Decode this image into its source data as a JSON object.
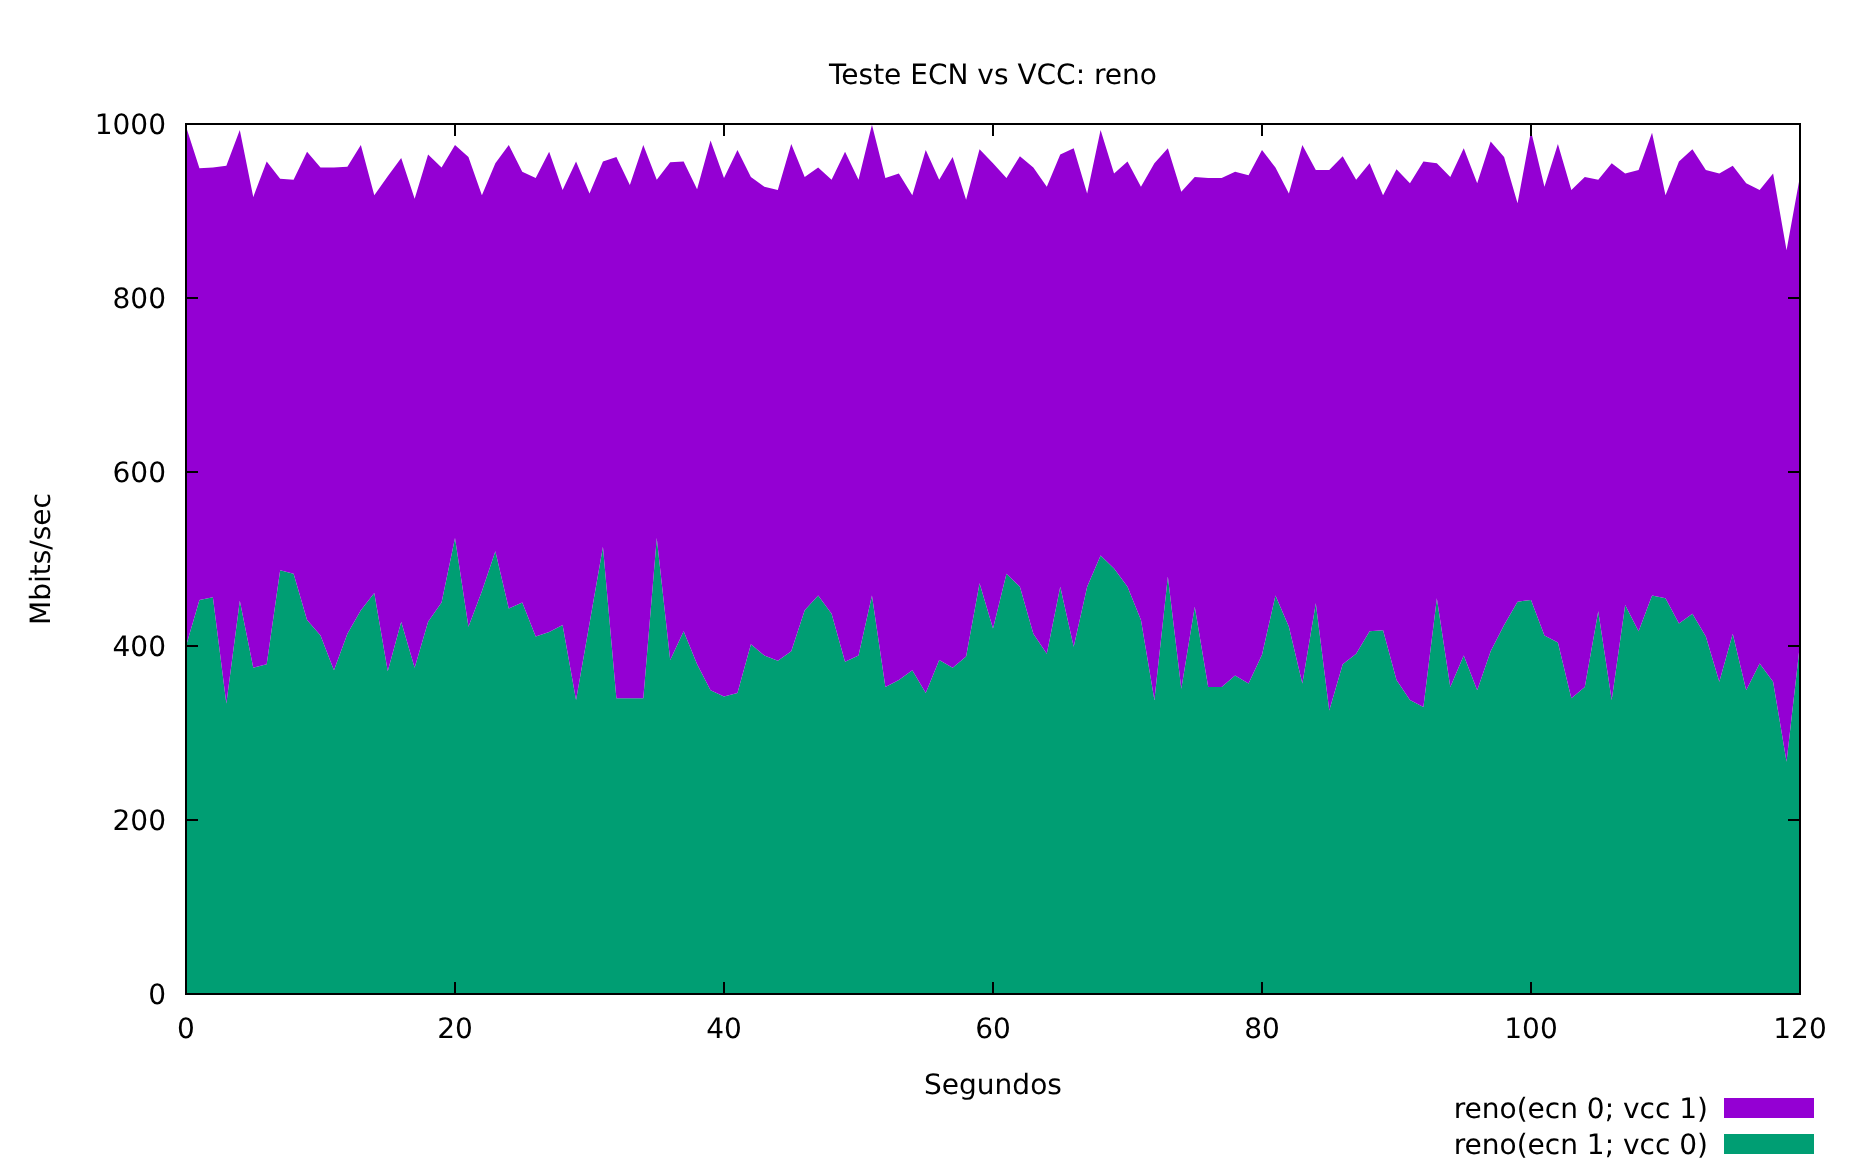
{
  "chart_data": {
    "type": "area",
    "stacked": true,
    "title": "Teste ECN vs VCC: reno",
    "xlabel": "Segundos",
    "ylabel": "Mbits/sec",
    "x": [
      0,
      1,
      2,
      3,
      4,
      5,
      6,
      7,
      8,
      9,
      10,
      11,
      12,
      13,
      14,
      15,
      16,
      17,
      18,
      19,
      20,
      21,
      22,
      23,
      24,
      25,
      26,
      27,
      28,
      29,
      30,
      31,
      32,
      33,
      34,
      35,
      36,
      37,
      38,
      39,
      40,
      41,
      42,
      43,
      44,
      45,
      46,
      47,
      48,
      49,
      50,
      51,
      52,
      53,
      54,
      55,
      56,
      57,
      58,
      59,
      60,
      61,
      62,
      63,
      64,
      65,
      66,
      67,
      68,
      69,
      70,
      71,
      72,
      73,
      74,
      75,
      76,
      77,
      78,
      79,
      80,
      81,
      82,
      83,
      84,
      85,
      86,
      87,
      88,
      89,
      90,
      91,
      92,
      93,
      94,
      95,
      96,
      97,
      98,
      99,
      100,
      101,
      102,
      103,
      104,
      105,
      106,
      107,
      108,
      109,
      110,
      111,
      112,
      113,
      114,
      115,
      116,
      117,
      118,
      119,
      120
    ],
    "series": [
      {
        "name": "reno(ecn 1; vcc 0)",
        "color": "#009e73",
        "values": [
          400,
          453,
          456,
          334,
          452,
          375,
          379,
          487,
          483,
          430,
          412,
          372,
          414,
          441,
          461,
          371,
          428,
          375,
          428,
          450,
          524,
          422,
          463,
          509,
          443,
          450,
          411,
          416,
          424,
          338,
          426,
          514,
          340,
          340,
          340,
          524,
          384,
          417,
          379,
          349,
          342,
          346,
          402,
          389,
          383,
          394,
          441,
          458,
          437,
          382,
          389,
          458,
          353,
          361,
          372,
          346,
          384,
          375,
          388,
          472,
          420,
          483,
          468,
          414,
          391,
          468,
          399,
          468,
          504,
          489,
          468,
          430,
          338,
          480,
          351,
          445,
          353,
          353,
          366,
          357,
          390,
          458,
          422,
          357,
          449,
          326,
          379,
          391,
          417,
          418,
          361,
          338,
          330,
          455,
          353,
          389,
          349,
          394,
          424,
          451,
          453,
          412,
          404,
          340,
          353,
          440,
          338,
          447,
          417,
          458,
          455,
          426,
          437,
          411,
          359,
          414,
          349,
          380,
          359,
          267,
          403
        ]
      },
      {
        "name": "reno(ecn 0; vcc 1)",
        "color": "#9400d3",
        "values": [
          597,
          496,
          494,
          618,
          541,
          541,
          578,
          450,
          453,
          538,
          538,
          578,
          537,
          535,
          457,
          569,
          533,
          539,
          537,
          500,
          452,
          540,
          455,
          446,
          533,
          495,
          527,
          552,
          500,
          619,
          494,
          443,
          622,
          590,
          636,
          412,
          572,
          540,
          546,
          632,
          596,
          624,
          537,
          539,
          541,
          583,
          498,
          492,
          499,
          586,
          547,
          541,
          585,
          582,
          546,
          624,
          552,
          587,
          525,
          499,
          535,
          455,
          495,
          536,
          537,
          497,
          573,
          452,
          489,
          454,
          489,
          498,
          617,
          492,
          571,
          494,
          585,
          585,
          579,
          584,
          580,
          492,
          498,
          619,
          498,
          621,
          584,
          545,
          538,
          500,
          587,
          594,
          627,
          500,
          586,
          583,
          583,
          586,
          538,
          458,
          539,
          516,
          573,
          584,
          586,
          496,
          617,
          496,
          530,
          532,
          463,
          531,
          534,
          536,
          584,
          538,
          583,
          544,
          584,
          588,
          537
        ]
      }
    ],
    "xlim": [
      0,
      120
    ],
    "xticks": [
      0,
      20,
      40,
      60,
      80,
      100,
      120
    ],
    "ylim": [
      0,
      1000
    ],
    "yticks": [
      0,
      200,
      400,
      600,
      800,
      1000
    ],
    "grid": false,
    "legend": "bottom right"
  }
}
